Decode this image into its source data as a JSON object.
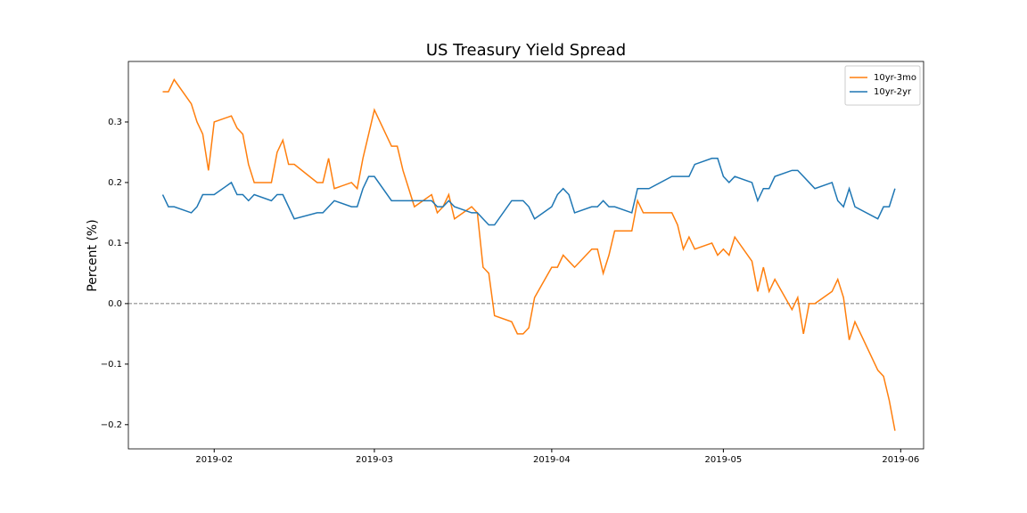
{
  "chart_data": {
    "type": "line",
    "title": "US Treasury Yield Spread",
    "ylabel": "Percent (%)",
    "x": [
      "2019-01-23",
      "2019-01-24",
      "2019-01-25",
      "2019-01-28",
      "2019-01-29",
      "2019-01-30",
      "2019-01-31",
      "2019-02-01",
      "2019-02-04",
      "2019-02-05",
      "2019-02-06",
      "2019-02-07",
      "2019-02-08",
      "2019-02-11",
      "2019-02-12",
      "2019-02-13",
      "2019-02-14",
      "2019-02-15",
      "2019-02-19",
      "2019-02-20",
      "2019-02-21",
      "2019-02-22",
      "2019-02-25",
      "2019-02-26",
      "2019-02-27",
      "2019-02-28",
      "2019-03-01",
      "2019-03-04",
      "2019-03-05",
      "2019-03-06",
      "2019-03-07",
      "2019-03-08",
      "2019-03-11",
      "2019-03-12",
      "2019-03-13",
      "2019-03-14",
      "2019-03-15",
      "2019-03-18",
      "2019-03-19",
      "2019-03-20",
      "2019-03-21",
      "2019-03-22",
      "2019-03-25",
      "2019-03-26",
      "2019-03-27",
      "2019-03-28",
      "2019-03-29",
      "2019-04-01",
      "2019-04-02",
      "2019-04-03",
      "2019-04-04",
      "2019-04-05",
      "2019-04-08",
      "2019-04-09",
      "2019-04-10",
      "2019-04-11",
      "2019-04-12",
      "2019-04-15",
      "2019-04-16",
      "2019-04-17",
      "2019-04-18",
      "2019-04-22",
      "2019-04-23",
      "2019-04-24",
      "2019-04-25",
      "2019-04-26",
      "2019-04-29",
      "2019-04-30",
      "2019-05-01",
      "2019-05-02",
      "2019-05-03",
      "2019-05-06",
      "2019-05-07",
      "2019-05-08",
      "2019-05-09",
      "2019-05-10",
      "2019-05-13",
      "2019-05-14",
      "2019-05-15",
      "2019-05-16",
      "2019-05-17",
      "2019-05-20",
      "2019-05-21",
      "2019-05-22",
      "2019-05-23",
      "2019-05-24",
      "2019-05-28",
      "2019-05-29",
      "2019-05-30",
      "2019-05-31"
    ],
    "series": [
      {
        "name": "10yr-3mo",
        "color": "#ff7f0e",
        "values": [
          0.35,
          0.35,
          0.37,
          0.33,
          0.3,
          0.28,
          0.22,
          0.3,
          0.31,
          0.29,
          0.28,
          0.23,
          0.2,
          0.2,
          0.25,
          0.27,
          0.23,
          0.23,
          0.2,
          0.2,
          0.24,
          0.19,
          0.2,
          0.19,
          0.24,
          0.28,
          0.32,
          0.26,
          0.26,
          0.22,
          0.19,
          0.16,
          0.18,
          0.15,
          0.16,
          0.18,
          0.14,
          0.16,
          0.15,
          0.06,
          0.05,
          -0.02,
          -0.03,
          -0.05,
          -0.05,
          -0.04,
          0.01,
          0.06,
          0.06,
          0.08,
          0.07,
          0.06,
          0.09,
          0.09,
          0.05,
          0.08,
          0.12,
          0.12,
          0.17,
          0.15,
          0.15,
          0.15,
          0.13,
          0.09,
          0.11,
          0.09,
          0.1,
          0.08,
          0.09,
          0.08,
          0.11,
          0.07,
          0.02,
          0.06,
          0.02,
          0.04,
          -0.01,
          0.01,
          -0.05,
          0.0,
          0.0,
          0.02,
          0.04,
          0.01,
          -0.06,
          -0.03,
          -0.11,
          -0.12,
          -0.16,
          -0.21
        ]
      },
      {
        "name": "10yr-2yr",
        "color": "#1f77b4",
        "values": [
          0.18,
          0.16,
          0.16,
          0.15,
          0.16,
          0.18,
          0.18,
          0.18,
          0.2,
          0.18,
          0.18,
          0.17,
          0.18,
          0.17,
          0.18,
          0.18,
          0.16,
          0.14,
          0.15,
          0.15,
          0.16,
          0.17,
          0.16,
          0.16,
          0.19,
          0.21,
          0.21,
          0.17,
          0.17,
          0.17,
          0.17,
          0.17,
          0.17,
          0.16,
          0.16,
          0.17,
          0.16,
          0.15,
          0.15,
          0.14,
          0.13,
          0.13,
          0.17,
          0.17,
          0.17,
          0.16,
          0.14,
          0.16,
          0.18,
          0.19,
          0.18,
          0.15,
          0.16,
          0.16,
          0.17,
          0.16,
          0.16,
          0.15,
          0.19,
          0.19,
          0.19,
          0.21,
          0.21,
          0.21,
          0.21,
          0.23,
          0.24,
          0.24,
          0.21,
          0.2,
          0.21,
          0.2,
          0.17,
          0.19,
          0.19,
          0.21,
          0.22,
          0.22,
          0.21,
          0.2,
          0.19,
          0.2,
          0.17,
          0.16,
          0.19,
          0.16,
          0.14,
          0.16,
          0.16,
          0.19
        ]
      }
    ],
    "xlim": [
      "2019-01-17",
      "2019-06-05"
    ],
    "xticks": [
      {
        "value": "2019-02-01",
        "label": "2019-02"
      },
      {
        "value": "2019-03-01",
        "label": "2019-03"
      },
      {
        "value": "2019-04-01",
        "label": "2019-04"
      },
      {
        "value": "2019-05-01",
        "label": "2019-05"
      },
      {
        "value": "2019-06-01",
        "label": "2019-06"
      }
    ],
    "ylim": [
      -0.24,
      0.4
    ],
    "yticks": [
      {
        "value": -0.2,
        "label": "−0.2"
      },
      {
        "value": -0.1,
        "label": "−0.1"
      },
      {
        "value": 0,
        "label": "0.0"
      },
      0.1,
      0.2,
      0.3
    ],
    "hline": 0,
    "legend": "upper right",
    "grid": false
  }
}
